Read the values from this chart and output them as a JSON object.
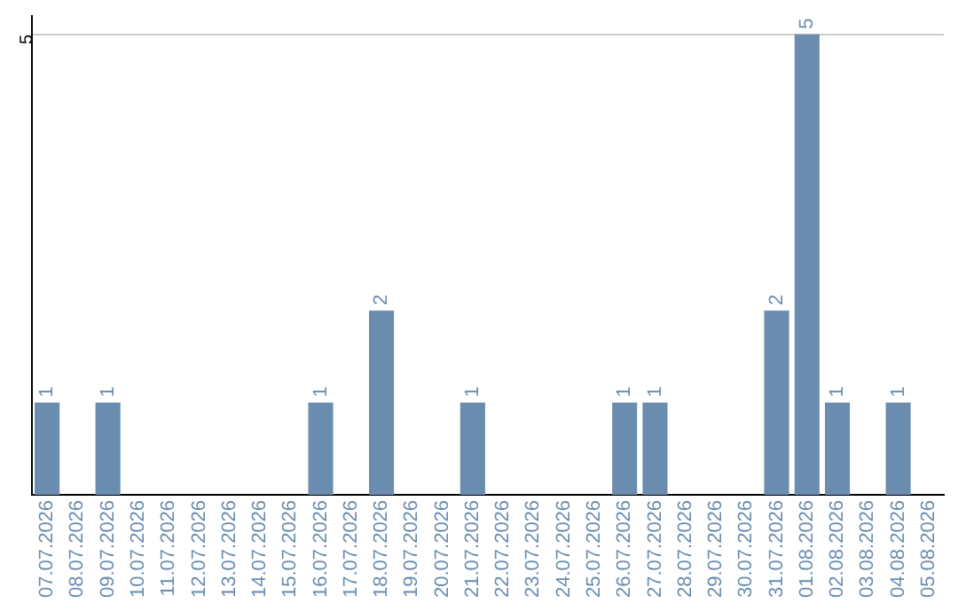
{
  "chart_data": {
    "type": "bar",
    "categories": [
      "07.07.2026",
      "08.07.2026",
      "09.07.2026",
      "10.07.2026",
      "11.07.2026",
      "12.07.2026",
      "13.07.2026",
      "14.07.2026",
      "15.07.2026",
      "16.07.2026",
      "17.07.2026",
      "18.07.2026",
      "19.07.2026",
      "20.07.2026",
      "21.07.2026",
      "22.07.2026",
      "23.07.2026",
      "24.07.2026",
      "25.07.2026",
      "26.07.2026",
      "27.07.2026",
      "28.07.2026",
      "29.07.2026",
      "30.07.2026",
      "31.07.2026",
      "01.08.2026",
      "02.08.2026",
      "03.08.2026",
      "04.08.2026",
      "05.08.2026"
    ],
    "values": [
      1,
      0,
      1,
      0,
      0,
      0,
      0,
      0,
      0,
      1,
      0,
      2,
      0,
      0,
      1,
      0,
      0,
      0,
      0,
      1,
      1,
      0,
      0,
      0,
      2,
      5,
      1,
      0,
      1,
      0
    ],
    "value_labels": [
      "1",
      null,
      "1",
      null,
      null,
      null,
      null,
      null,
      null,
      "1",
      null,
      "2",
      null,
      null,
      "1",
      null,
      null,
      null,
      null,
      "1",
      "1",
      null,
      null,
      null,
      "2",
      "5",
      "1",
      null,
      "1",
      null
    ],
    "color": "#6a8caf",
    "ylim": [
      0,
      5.2
    ],
    "yticks": [
      5
    ],
    "grid": "y",
    "legend": false
  }
}
